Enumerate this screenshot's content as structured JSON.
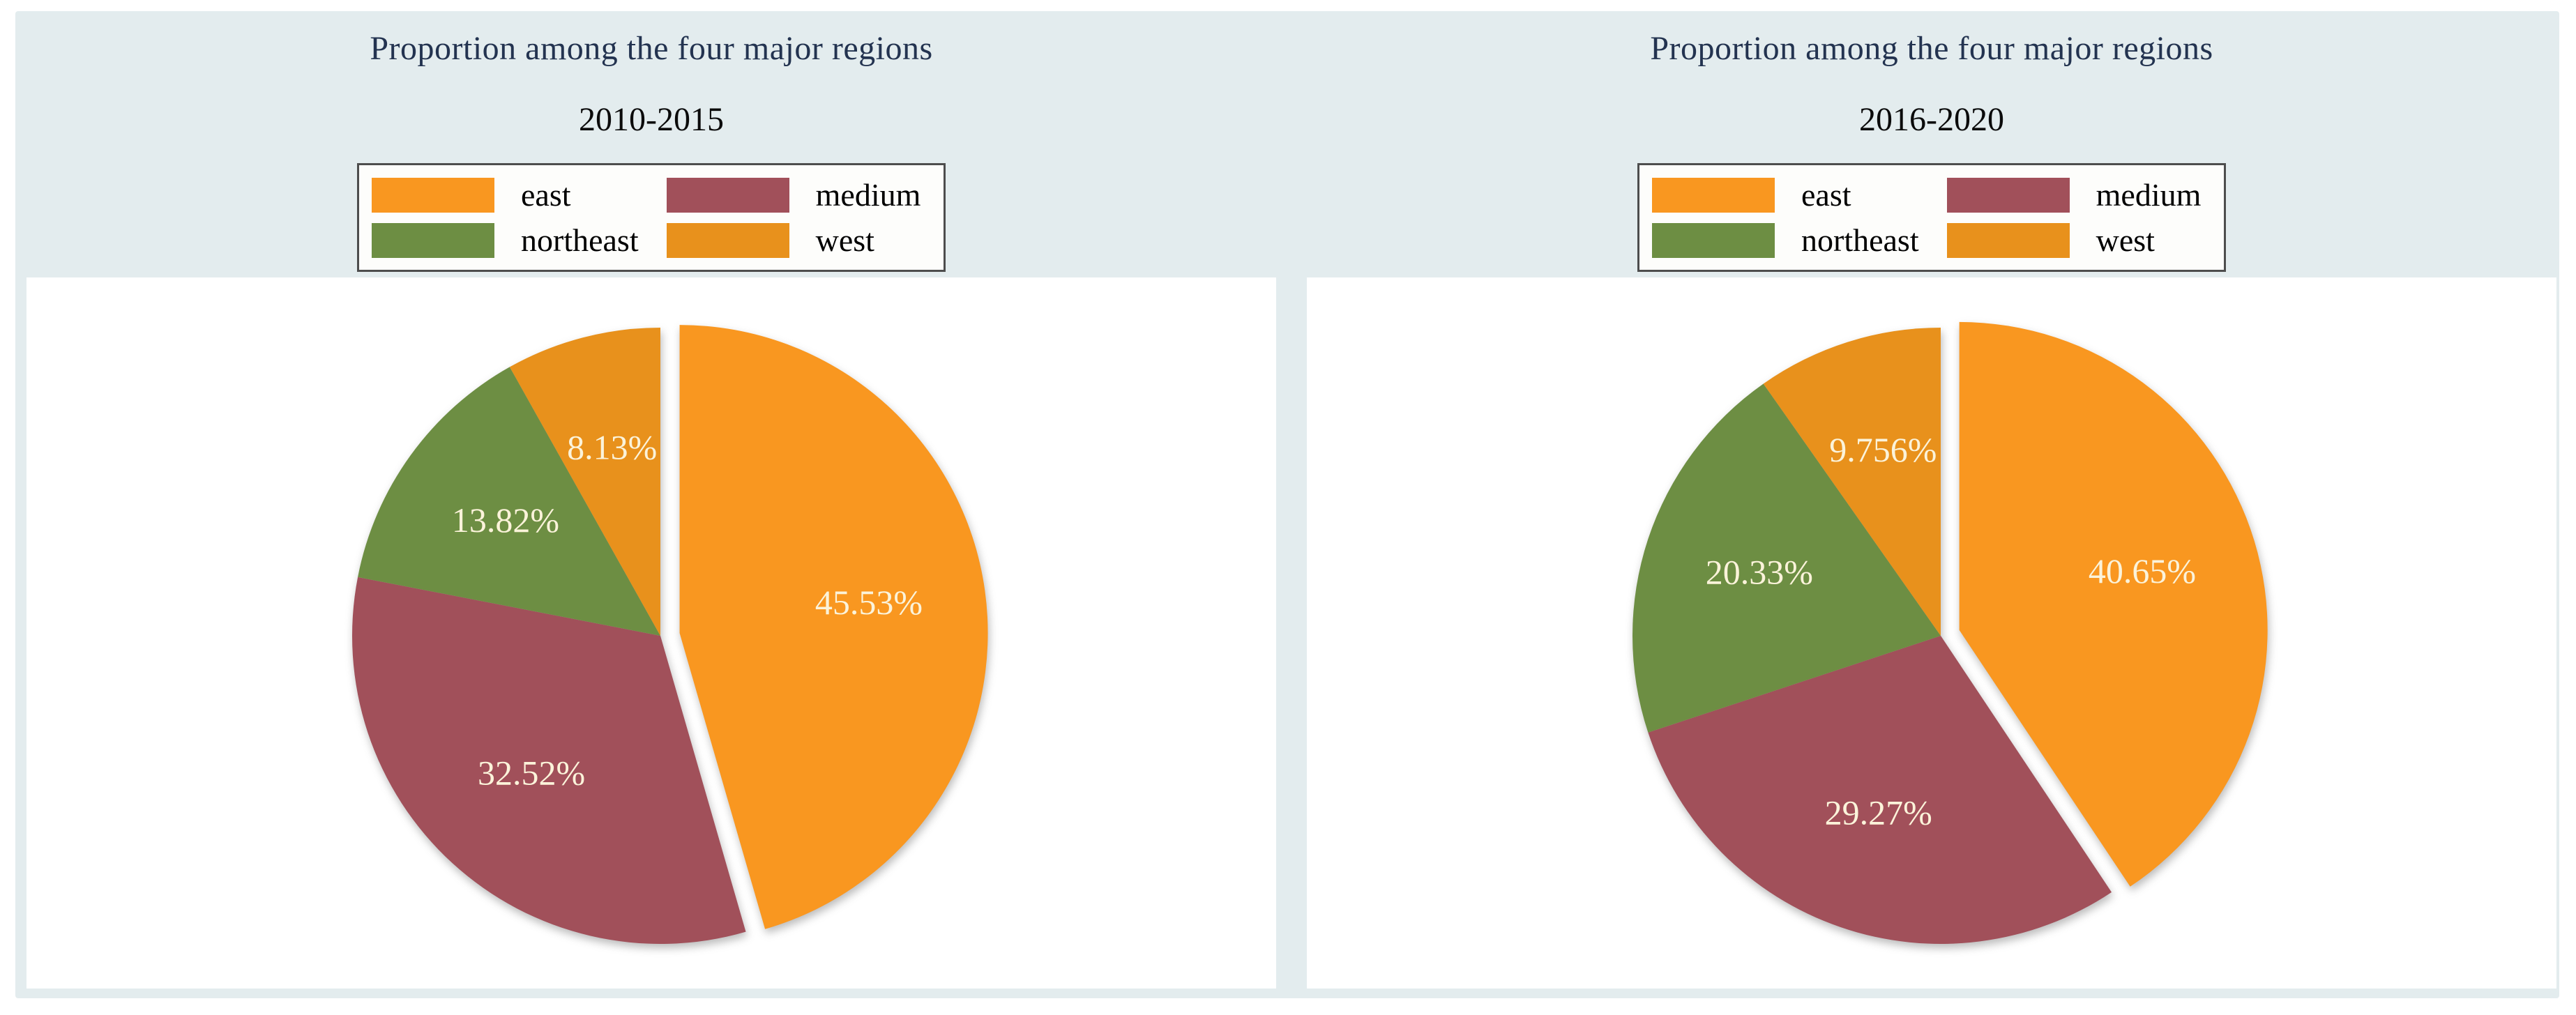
{
  "figure": {
    "background_color": "#e3ecee",
    "panel_color": "#ffffff",
    "title_color": "#233350",
    "pct_label_color": "#fbf3da"
  },
  "chart_data": [
    {
      "type": "pie",
      "title": "Proportion among the four major regions",
      "subtitle": "2010-2015",
      "categories": [
        "east",
        "medium",
        "northeast",
        "west"
      ],
      "values": [
        45.53,
        32.52,
        13.82,
        8.13
      ],
      "labels": [
        "45.53%",
        "32.52%",
        "13.82%",
        "8.13%"
      ],
      "colors": [
        "#f99720",
        "#a1505a",
        "#6d8e43",
        "#e8911c"
      ],
      "explode": [
        0.063,
        0,
        0,
        0
      ],
      "start_angle": 90,
      "direction": "clockwise",
      "legend_position": "top",
      "legend_columns": 2
    },
    {
      "type": "pie",
      "title": "Proportion among the four major regions",
      "subtitle": "2016-2020",
      "categories": [
        "east",
        "medium",
        "northeast",
        "west"
      ],
      "values": [
        40.65,
        29.27,
        20.33,
        9.756
      ],
      "labels": [
        "40.65%",
        "29.27%",
        "20.33%",
        "9.756%"
      ],
      "colors": [
        "#f99720",
        "#a1505a",
        "#6d8e43",
        "#e8911c"
      ],
      "explode": [
        0.063,
        0,
        0,
        0
      ],
      "start_angle": 90,
      "direction": "clockwise",
      "legend_position": "top",
      "legend_columns": 2
    }
  ]
}
